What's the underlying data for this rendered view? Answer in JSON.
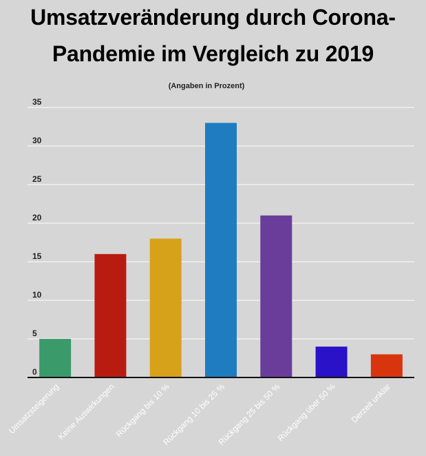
{
  "chart_data": {
    "type": "bar",
    "title_lines": [
      "Umsatzveränderung durch Corona-",
      "Pandemie im Vergleich zu 2019"
    ],
    "subtitle": "(Angaben in Prozent)",
    "categories": [
      "Umsatzsteigerung",
      "Keine Auswirkungen",
      "Rückgang bis 10 %",
      "Rückgang 10 bis 25 %",
      "Rückgang 25 bis 50 %",
      "Rückgang über 50 %",
      "Derzeit unklar"
    ],
    "values": [
      5,
      16,
      18,
      33,
      21,
      4,
      3
    ],
    "colors": [
      "#3a9a6a",
      "#b81c10",
      "#d6a21a",
      "#1f7cc0",
      "#6b3d9a",
      "#2a12c8",
      "#d8340e"
    ],
    "ylim": [
      0,
      35
    ],
    "yticks": [
      0,
      5,
      10,
      15,
      20,
      25,
      30,
      35
    ],
    "grid": true,
    "xlabel": "",
    "ylabel": ""
  }
}
